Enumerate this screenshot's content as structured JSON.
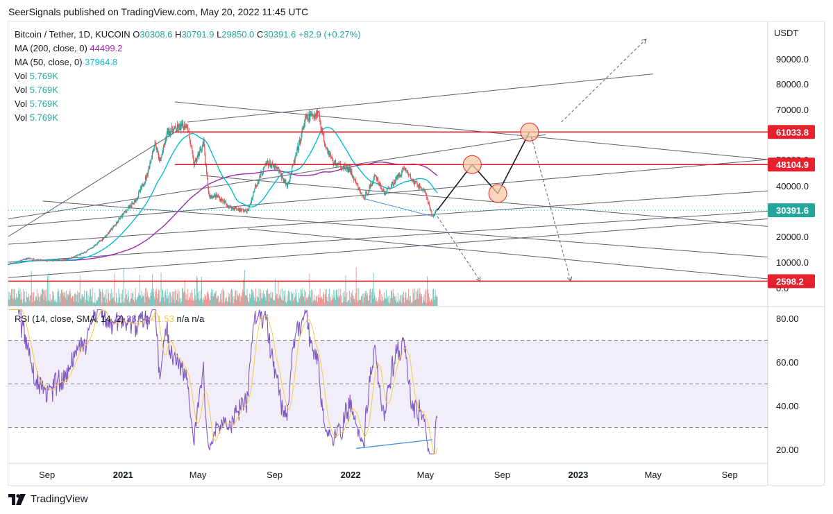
{
  "header": {
    "text": "SeerSignals published on TradingView.com, May 20, 2022 11:45 UTC"
  },
  "legend": {
    "symbol": "Bitcoin / Tether, 1D, KUCOIN",
    "o_label": "O",
    "o": "30308.6",
    "h_label": "H",
    "h": "30791.9",
    "l_label": "L",
    "l": "29850.0",
    "c_label": "C",
    "c": "30391.6",
    "chg": "+82.9 (+0.27%)",
    "ma200_label": "MA (200, close, 0)",
    "ma200": "44499.2",
    "ma50_label": "MA (50, close, 0)",
    "ma50": "37964.8",
    "vol_label": "Vol",
    "vol": "5.769K",
    "rsi_label": "RSI (14, close, SMA, 14, 2)",
    "rsi": "38.54",
    "rsi_sma": "41.53",
    "na1": "n/a",
    "na2": "n/a"
  },
  "axis": {
    "currency": "USDT",
    "price_ticks": [
      "90000.0",
      "80000.0",
      "70000.0",
      "50000.0",
      "40000.0",
      "20000.0",
      "10000.0",
      "0.0"
    ],
    "price_tags": [
      "61033.8",
      "48104.9",
      "30391.6",
      "2598.2"
    ],
    "rsi_ticks": [
      "80.00",
      "60.00",
      "40.00",
      "20.00"
    ],
    "time_ticks": [
      "Sep",
      "2021",
      "May",
      "Sep",
      "2022",
      "May",
      "Sep",
      "2023",
      "May",
      "Sep"
    ]
  },
  "colors": {
    "up": "#26a69a",
    "down": "#ef5350",
    "ma200": "#9c27b0",
    "ma50": "#00bcd4",
    "rsi": "#7e57c2",
    "rsi_sma": "#f7c948",
    "resistance": "#e5212e",
    "trend": "#5d606b",
    "last_price": "#26a69a",
    "forecast_circle": "#f6c9a3"
  },
  "footer": {
    "brand": "TradingView",
    "logo_icon": "tradingview-logo-icon"
  },
  "chart_data": {
    "type": "line",
    "title": "Bitcoin / Tether, 1D, KUCOIN",
    "ylabel": "USDT",
    "x_start": "2020-07",
    "x_end": "2023-11",
    "x_ticks": [
      "Sep",
      "2021",
      "May",
      "Sep",
      "2022",
      "May",
      "Sep",
      "2023",
      "May",
      "Sep"
    ],
    "price_path": [
      [
        "2020-07-01",
        9200
      ],
      [
        "2020-08-01",
        11500
      ],
      [
        "2020-09-01",
        10500
      ],
      [
        "2020-10-01",
        11000
      ],
      [
        "2020-11-01",
        13800
      ],
      [
        "2020-12-01",
        19500
      ],
      [
        "2021-01-01",
        29000
      ],
      [
        "2021-01-20",
        34000
      ],
      [
        "2021-02-08",
        44000
      ],
      [
        "2021-02-21",
        57000
      ],
      [
        "2021-03-01",
        49000
      ],
      [
        "2021-03-13",
        61000
      ],
      [
        "2021-04-14",
        64000
      ],
      [
        "2021-04-25",
        48000
      ],
      [
        "2021-05-10",
        57000
      ],
      [
        "2021-05-19",
        36000
      ],
      [
        "2021-06-01",
        36000
      ],
      [
        "2021-06-22",
        31500
      ],
      [
        "2021-07-20",
        30000
      ],
      [
        "2021-08-01",
        40000
      ],
      [
        "2021-08-20",
        49000
      ],
      [
        "2021-09-07",
        46000
      ],
      [
        "2021-09-21",
        40000
      ],
      [
        "2021-10-01",
        48000
      ],
      [
        "2021-10-20",
        66000
      ],
      [
        "2021-11-10",
        69000
      ],
      [
        "2021-11-20",
        57000
      ],
      [
        "2021-12-04",
        49000
      ],
      [
        "2021-12-31",
        46000
      ],
      [
        "2022-01-22",
        35000
      ],
      [
        "2022-02-10",
        44000
      ],
      [
        "2022-02-24",
        37000
      ],
      [
        "2022-03-28",
        47000
      ],
      [
        "2022-04-10",
        42000
      ],
      [
        "2022-04-30",
        38000
      ],
      [
        "2022-05-12",
        28000
      ],
      [
        "2022-05-20",
        30391.6
      ]
    ],
    "series": [
      {
        "name": "MA (200, close, 0)",
        "last": 44499.2
      },
      {
        "name": "MA (50, close, 0)",
        "last": 37964.8
      },
      {
        "name": "Vol",
        "last": 5.769
      },
      {
        "name": "RSI (14, close, SMA, 14, 2)",
        "last": 38.54
      }
    ],
    "levels": [
      61033.8,
      48104.9,
      30391.6,
      2598.2
    ],
    "forecast_path": [
      [
        "2022-05-20",
        30391.6
      ],
      [
        "2022-07-15",
        48104.9
      ],
      [
        "2022-08-25",
        37000
      ],
      [
        "2022-10-15",
        61033.8
      ]
    ],
    "ylim": [
      0,
      100000
    ],
    "rsi_levels": [
      70,
      50,
      30
    ],
    "rsi_ylim": [
      15,
      85
    ]
  }
}
